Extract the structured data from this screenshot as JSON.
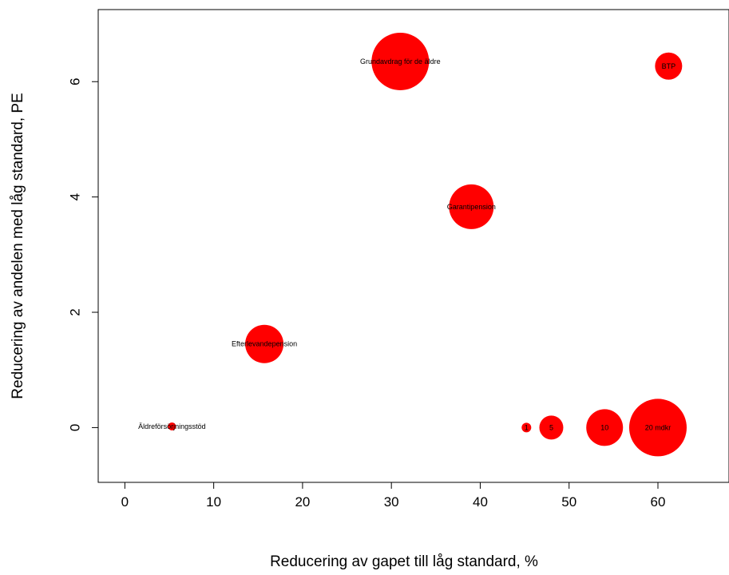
{
  "chart_data": {
    "type": "scatter",
    "title": "",
    "xlabel": "Reducering av gapet till låg standard, %",
    "ylabel": "Reducering av andelen med låg standard, PE",
    "xlim": [
      -3,
      68
    ],
    "ylim": [
      -0.95,
      7.25
    ],
    "xticks": [
      "0",
      "10",
      "20",
      "30",
      "40",
      "50",
      "60"
    ],
    "yticks": [
      "0",
      "2",
      "4",
      "6"
    ],
    "grid": false,
    "color": "#ff0000",
    "points": [
      {
        "label": "Grundavdrag för de äldre",
        "x": 31,
        "y": 6.35,
        "size": 36
      },
      {
        "label": "BTP",
        "x": 61.2,
        "y": 6.27,
        "size": 17
      },
      {
        "label": "Garantipension",
        "x": 39,
        "y": 3.83,
        "size": 28
      },
      {
        "label": "Efterlevandepension",
        "x": 15.7,
        "y": 1.45,
        "size": 24
      },
      {
        "label": "Äldreförsörjningsstöd",
        "x": 5.3,
        "y": 0.02,
        "size": 5
      },
      {
        "label": "1",
        "x": 45.2,
        "y": 0.0,
        "size": 6
      },
      {
        "label": "5",
        "x": 48,
        "y": 0.0,
        "size": 15
      },
      {
        "label": "10",
        "x": 54,
        "y": 0.0,
        "size": 23
      },
      {
        "label": "20 mdkr",
        "x": 60,
        "y": 0.0,
        "size": 36
      }
    ]
  }
}
